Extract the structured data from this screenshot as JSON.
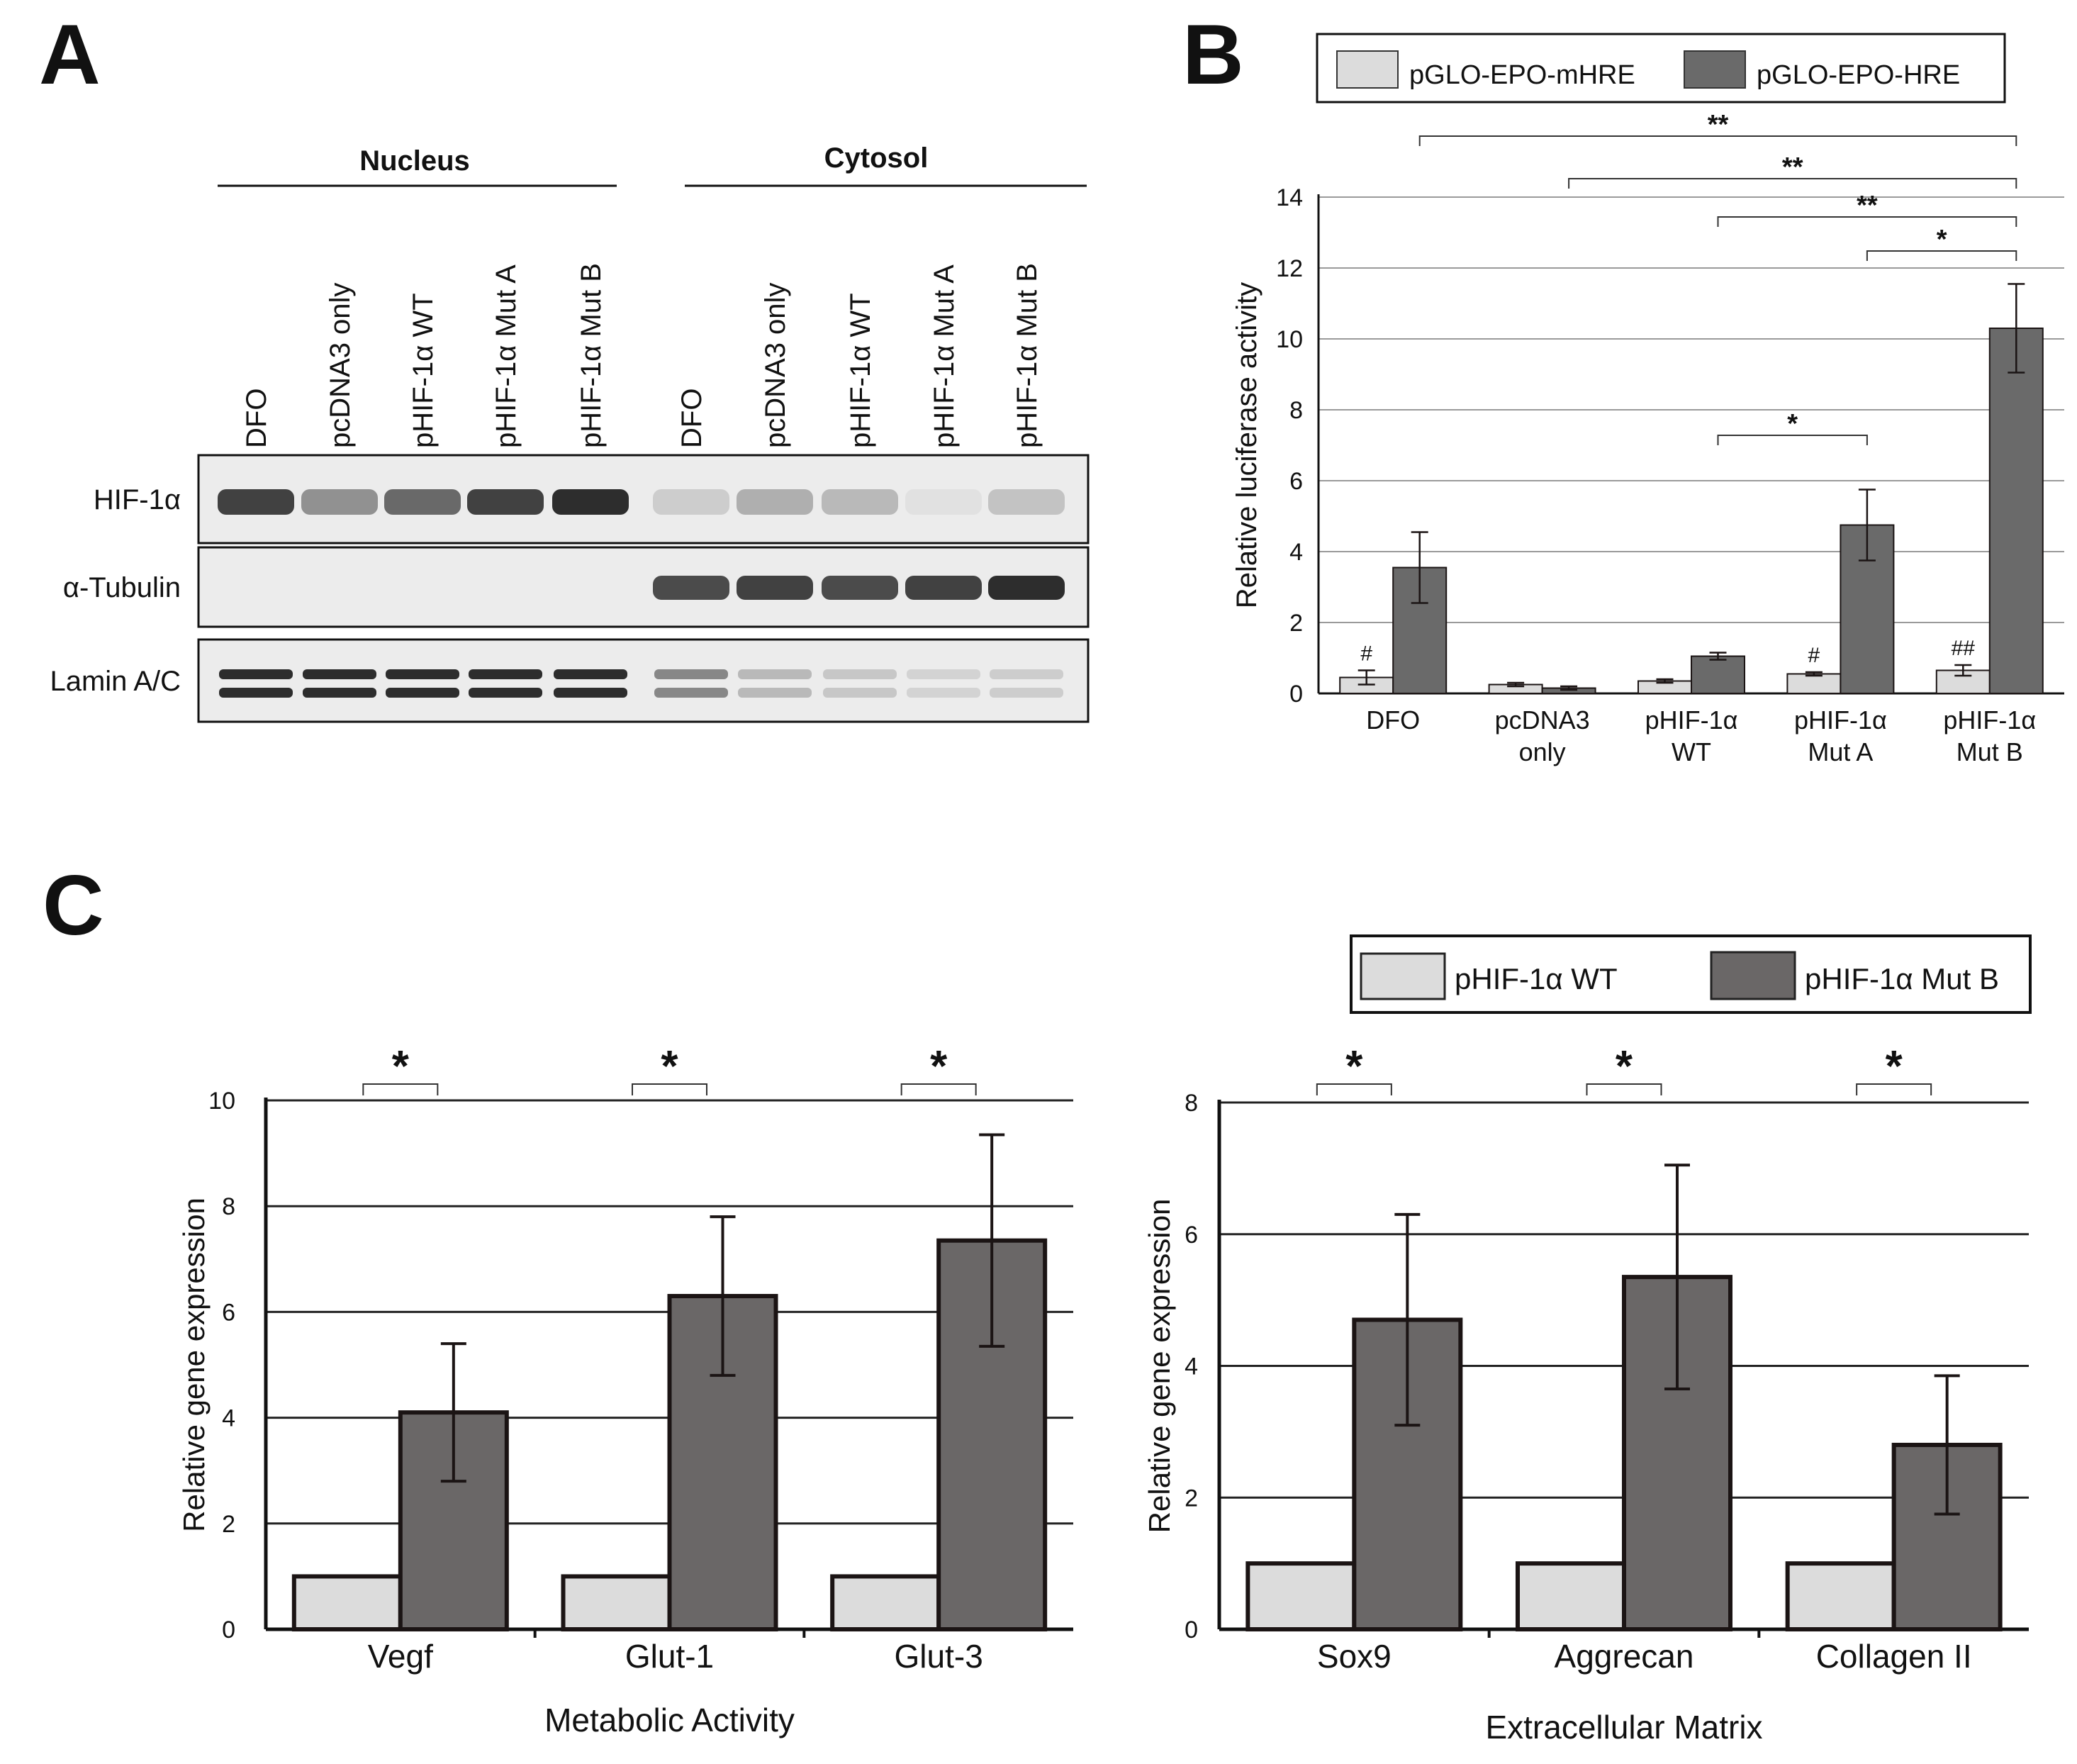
{
  "figure": {
    "panel_labels": [
      "A",
      "B",
      "C"
    ]
  },
  "panel_a": {
    "group_labels": [
      "Nucleus",
      "Cytosol"
    ],
    "lane_labels": [
      "DFO",
      "pcDNA3 only",
      "pHIF-1α WT",
      "pHIF-1α Mut A",
      "pHIF-1α Mut B",
      "DFO",
      "pcDNA3 only",
      "pHIF-1α WT",
      "pHIF-1α Mut A",
      "pHIF-1α Mut B"
    ],
    "row_labels": [
      "HIF-1α",
      "α-Tubulin",
      "Lamin A/C"
    ],
    "band_intensity": {
      "HIF-1α": [
        0.85,
        0.45,
        0.65,
        0.85,
        0.95,
        0.15,
        0.3,
        0.25,
        0.05,
        0.2
      ],
      "α-Tubulin": [
        0,
        0,
        0,
        0,
        0,
        0.8,
        0.85,
        0.8,
        0.85,
        0.95
      ],
      "Lamin A/C": [
        0.95,
        0.95,
        0.95,
        0.95,
        0.95,
        0.5,
        0.25,
        0.18,
        0.12,
        0.15
      ]
    }
  },
  "chart_data": [
    {
      "panel": "B",
      "type": "bar",
      "title": "",
      "xlabel": "",
      "ylabel": "Relative luciferase activity",
      "ylim": [
        0,
        14
      ],
      "yticks": [
        0,
        2,
        4,
        6,
        8,
        10,
        12,
        14
      ],
      "grid": true,
      "legend_position": "top",
      "categories": [
        [
          "DFO"
        ],
        [
          "pcDNA3",
          "only"
        ],
        [
          "pHIF-1α",
          "WT"
        ],
        [
          "pHIF-1α",
          "Mut A"
        ],
        [
          "pHIF-1α",
          "Mut B"
        ]
      ],
      "series": [
        {
          "name": "pGLO-EPO-mHRE",
          "color": "#dcdcdc",
          "values": [
            0.45,
            0.25,
            0.35,
            0.55,
            0.65
          ],
          "errors": [
            0.2,
            0.05,
            0.05,
            0.05,
            0.15
          ],
          "marks": [
            "#",
            "",
            "",
            "#",
            "##"
          ]
        },
        {
          "name": "pGLO-EPO-HRE",
          "color": "#6a6a6a",
          "values": [
            3.55,
            0.15,
            1.05,
            4.75,
            10.3
          ],
          "errors": [
            1.0,
            0.05,
            0.1,
            1.0,
            1.25
          ]
        }
      ],
      "significance": [
        {
          "from": 0,
          "to": 4,
          "label": "**"
        },
        {
          "from": 1,
          "to": 4,
          "label": "**"
        },
        {
          "from": 2,
          "to": 4,
          "label": "**"
        },
        {
          "from": 3,
          "to": 4,
          "label": "*"
        },
        {
          "from": 2,
          "to": 3,
          "label": "*"
        }
      ]
    },
    {
      "panel": "C-left",
      "type": "bar",
      "title": "Metabolic Activity",
      "xlabel": "Metabolic Activity",
      "ylabel": "Relative gene expression",
      "ylim": [
        0,
        10
      ],
      "yticks": [
        0,
        2,
        4,
        6,
        8,
        10
      ],
      "grid": true,
      "categories": [
        "Vegf",
        "Glut-1",
        "Glut-3"
      ],
      "series": [
        {
          "name": "pHIF-1α WT",
          "color": "#dcdcdc",
          "values": [
            1,
            1,
            1
          ],
          "errors": [
            0,
            0,
            0
          ]
        },
        {
          "name": "pHIF-1α Mut B",
          "color": "#6a6767",
          "values": [
            4.1,
            6.3,
            7.35
          ],
          "errors": [
            1.3,
            1.5,
            2.0
          ]
        }
      ],
      "significance": [
        "*",
        "*",
        "*"
      ]
    },
    {
      "panel": "C-right",
      "type": "bar",
      "title": "Extracellular Matrix",
      "xlabel": "Extracellular Matrix",
      "ylabel": "Relative gene expression",
      "ylim": [
        0,
        8
      ],
      "yticks": [
        0,
        2,
        4,
        6,
        8
      ],
      "grid": true,
      "categories": [
        "Sox9",
        "Aggrecan",
        "Collagen II"
      ],
      "series": [
        {
          "name": "pHIF-1α WT",
          "color": "#dcdcdc",
          "values": [
            1,
            1,
            1
          ],
          "errors": [
            0,
            0,
            0
          ]
        },
        {
          "name": "pHIF-1α Mut B",
          "color": "#6a6767",
          "values": [
            4.7,
            5.35,
            2.8
          ],
          "errors": [
            1.6,
            1.7,
            1.05
          ]
        }
      ],
      "significance": [
        "*",
        "*",
        "*"
      ]
    }
  ],
  "legend_c": {
    "entries": [
      "pHIF-1α WT",
      "pHIF-1α Mut B"
    ]
  }
}
